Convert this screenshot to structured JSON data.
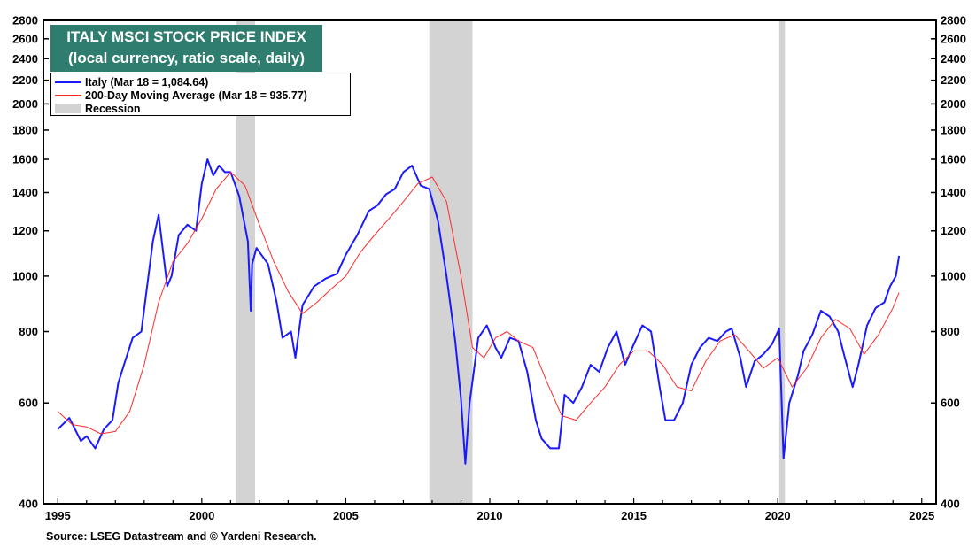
{
  "chart_data": {
    "type": "line",
    "title": "ITALY MSCI STOCK PRICE INDEX",
    "subtitle": "(local currency, ratio scale, daily)",
    "y_scale": "log",
    "ylim": [
      400,
      2800
    ],
    "xlim": [
      1994.5,
      2025.5
    ],
    "y_ticks": [
      400,
      600,
      800,
      1000,
      1200,
      1400,
      1600,
      1800,
      2000,
      2200,
      2400,
      2600,
      2800
    ],
    "x_ticks": [
      1995,
      2000,
      2005,
      2010,
      2015,
      2020,
      2025
    ],
    "grid": false,
    "legend_position": "top-left",
    "series": [
      {
        "name": "Italy (Mar 18 = 1,084.64)",
        "color": "#1a1aff",
        "x": [
          1995.0,
          1995.4,
          1995.8,
          1996.0,
          1996.3,
          1996.6,
          1996.9,
          1997.1,
          1997.3,
          1997.6,
          1997.9,
          1998.1,
          1998.3,
          1998.5,
          1998.8,
          1998.95,
          1999.2,
          1999.5,
          1999.8,
          2000.0,
          2000.2,
          2000.4,
          2000.6,
          2000.8,
          2001.0,
          2001.3,
          2001.6,
          2001.7,
          2001.75,
          2001.9,
          2002.3,
          2002.6,
          2002.8,
          2003.1,
          2003.25,
          2003.5,
          2003.9,
          2004.3,
          2004.7,
          2005.0,
          2005.4,
          2005.8,
          2006.1,
          2006.4,
          2006.7,
          2007.0,
          2007.3,
          2007.6,
          2007.9,
          2008.2,
          2008.5,
          2008.8,
          2009.0,
          2009.15,
          2009.3,
          2009.6,
          2009.9,
          2010.2,
          2010.4,
          2010.7,
          2011.0,
          2011.3,
          2011.6,
          2011.8,
          2012.1,
          2012.4,
          2012.6,
          2012.9,
          2013.2,
          2013.5,
          2013.8,
          2014.1,
          2014.4,
          2014.7,
          2015.0,
          2015.3,
          2015.6,
          2015.9,
          2016.1,
          2016.4,
          2016.7,
          2017.0,
          2017.3,
          2017.6,
          2017.9,
          2018.2,
          2018.4,
          2018.7,
          2018.9,
          2019.2,
          2019.5,
          2019.8,
          2020.05,
          2020.2,
          2020.4,
          2020.7,
          2020.9,
          2021.2,
          2021.5,
          2021.8,
          2022.1,
          2022.3,
          2022.6,
          2022.8,
          2023.1,
          2023.4,
          2023.7,
          2023.9,
          2024.1,
          2024.21
        ],
        "y": [
          540,
          565,
          515,
          525,
          500,
          540,
          560,
          650,
          700,
          780,
          800,
          960,
          1150,
          1280,
          960,
          1000,
          1180,
          1230,
          1200,
          1450,
          1600,
          1500,
          1560,
          1520,
          1520,
          1380,
          1150,
          870,
          1050,
          1120,
          1050,
          900,
          780,
          800,
          720,
          890,
          960,
          990,
          1010,
          1090,
          1180,
          1300,
          1330,
          1390,
          1420,
          1520,
          1560,
          1440,
          1420,
          1250,
          1000,
          770,
          610,
          470,
          600,
          780,
          820,
          750,
          720,
          780,
          770,
          680,
          560,
          520,
          500,
          500,
          620,
          600,
          640,
          700,
          680,
          750,
          800,
          700,
          760,
          820,
          800,
          640,
          560,
          560,
          600,
          700,
          750,
          780,
          770,
          800,
          810,
          720,
          640,
          710,
          730,
          760,
          810,
          480,
          600,
          670,
          740,
          790,
          870,
          850,
          800,
          730,
          640,
          700,
          820,
          880,
          900,
          960,
          1000,
          1085
        ]
      },
      {
        "name": "200-Day Moving Average (Mar 18 = 935.77)",
        "color": "#ff2a2a",
        "x": [
          1995.0,
          1995.5,
          1996.0,
          1996.5,
          1997.0,
          1997.5,
          1998.0,
          1998.5,
          1999.0,
          1999.5,
          2000.0,
          2000.5,
          2001.0,
          2001.5,
          2002.0,
          2002.5,
          2003.0,
          2003.5,
          2004.0,
          2004.5,
          2005.0,
          2005.5,
          2006.0,
          2006.5,
          2007.0,
          2007.5,
          2008.0,
          2008.5,
          2009.0,
          2009.4,
          2009.8,
          2010.2,
          2010.6,
          2011.0,
          2011.5,
          2012.0,
          2012.5,
          2013.0,
          2013.5,
          2014.0,
          2014.5,
          2015.0,
          2015.5,
          2016.0,
          2016.5,
          2017.0,
          2017.5,
          2018.0,
          2018.5,
          2019.0,
          2019.5,
          2020.0,
          2020.5,
          2021.0,
          2021.5,
          2022.0,
          2022.5,
          2023.0,
          2023.5,
          2024.0,
          2024.21
        ],
        "y": [
          580,
          550,
          545,
          530,
          535,
          580,
          700,
          900,
          1060,
          1140,
          1260,
          1420,
          1520,
          1440,
          1230,
          1060,
          940,
          860,
          900,
          950,
          1000,
          1100,
          1180,
          1260,
          1350,
          1450,
          1490,
          1350,
          1000,
          750,
          720,
          780,
          800,
          770,
          750,
          650,
          570,
          560,
          600,
          640,
          700,
          740,
          740,
          700,
          640,
          630,
          710,
          770,
          790,
          740,
          690,
          720,
          640,
          690,
          780,
          840,
          810,
          730,
          790,
          880,
          936
        ]
      }
    ],
    "recessions": [
      [
        2001.2,
        2001.85
      ],
      [
        2007.9,
        2009.4
      ],
      [
        2020.05,
        2020.25
      ]
    ]
  },
  "legend": {
    "series_1": "Italy (Mar 18 = 1,084.64)",
    "series_2": "200-Day Moving Average (Mar 18 = 935.77)",
    "recession": "Recession"
  },
  "source": "Source: LSEG Datastream and © Yardeni Research."
}
